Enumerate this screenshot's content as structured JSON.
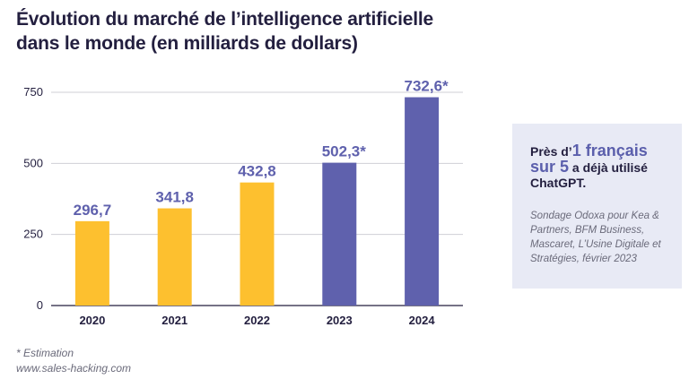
{
  "chart_data": {
    "type": "bar",
    "title_line1": "Évolution du marché de l’intelligence artificielle",
    "title_line2": "dans le monde (en milliards de dollars)",
    "categories": [
      "2020",
      "2021",
      "2022",
      "2023",
      "2024"
    ],
    "values": [
      296.7,
      341.8,
      432.8,
      502.3,
      732.6
    ],
    "data_labels": [
      "296,7",
      "341,8",
      "432,8",
      "502,3*",
      "732,6*"
    ],
    "estimated": [
      false,
      false,
      false,
      true,
      true
    ],
    "yticks": [
      0,
      250,
      500,
      750
    ],
    "ylim": [
      0,
      750
    ],
    "xlabel": "",
    "ylabel": "",
    "grid": true,
    "colors": {
      "actual": "#fdc02f",
      "estimate": "#5f61ad",
      "grid": "#cfcfd6",
      "axis": "#231f3f"
    }
  },
  "info_box": {
    "prefix": "Près d’",
    "highlight": "1 français sur 5",
    "suffix": " a déjà utilisé ChatGPT.",
    "source": "Sondage Odoxa pour Kea & Partners, BFM Business, Mascaret, L’Usine Digitale et Stratégies, février 2023"
  },
  "footer": {
    "note": "* Estimation",
    "site": "www.sales-hacking.com"
  }
}
